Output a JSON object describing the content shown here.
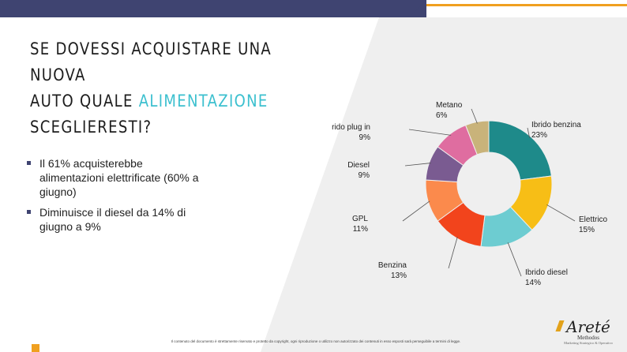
{
  "title": {
    "line1": "SE DOVESSI ACQUISTARE UNA NUOVA",
    "line2_start": "AUTO QUALE ",
    "line2_accent": "ALIMENTAZIONE",
    "line3": "SCEGLIERESTI?"
  },
  "bullets": [
    "Il 61% acquisterebbe alimentazioni elettrificate (60% a giugno)",
    "Diminuisce il diesel da 14% di giugno a 9%"
  ],
  "footer": "Il contenuto del documento è strettamente riservato e protetto da copyright, ogni riproduzione o utilizzo non autorizzato dei contenuti in esso esposti sarà perseguibile a termini di legge.",
  "logo": {
    "brand": "Areté",
    "sub1": "Methodos",
    "sub2": "Marketing Strategico & Operativo"
  },
  "colors": {
    "accent": "#3cc0cf",
    "header": "#3f4471",
    "orange": "#f0a020"
  },
  "chart_data": {
    "type": "pie",
    "donut": true,
    "categories": [
      "Ibrido benzina",
      "Elettrico",
      "Ibrido diesel",
      "Benzina",
      "GPL",
      "Diesel",
      "Ibrido plug in",
      "Metano"
    ],
    "values": [
      23,
      15,
      14,
      13,
      11,
      9,
      9,
      6
    ],
    "labels": [
      "23%",
      "15%",
      "14%",
      "13%",
      "11%",
      "9%",
      "9%",
      "6%"
    ],
    "colors": [
      "#1e8a8a",
      "#f7be16",
      "#6dccd1",
      "#f2441c",
      "#fb8a4c",
      "#7a5b91",
      "#df6da0",
      "#c9b37a"
    ]
  }
}
